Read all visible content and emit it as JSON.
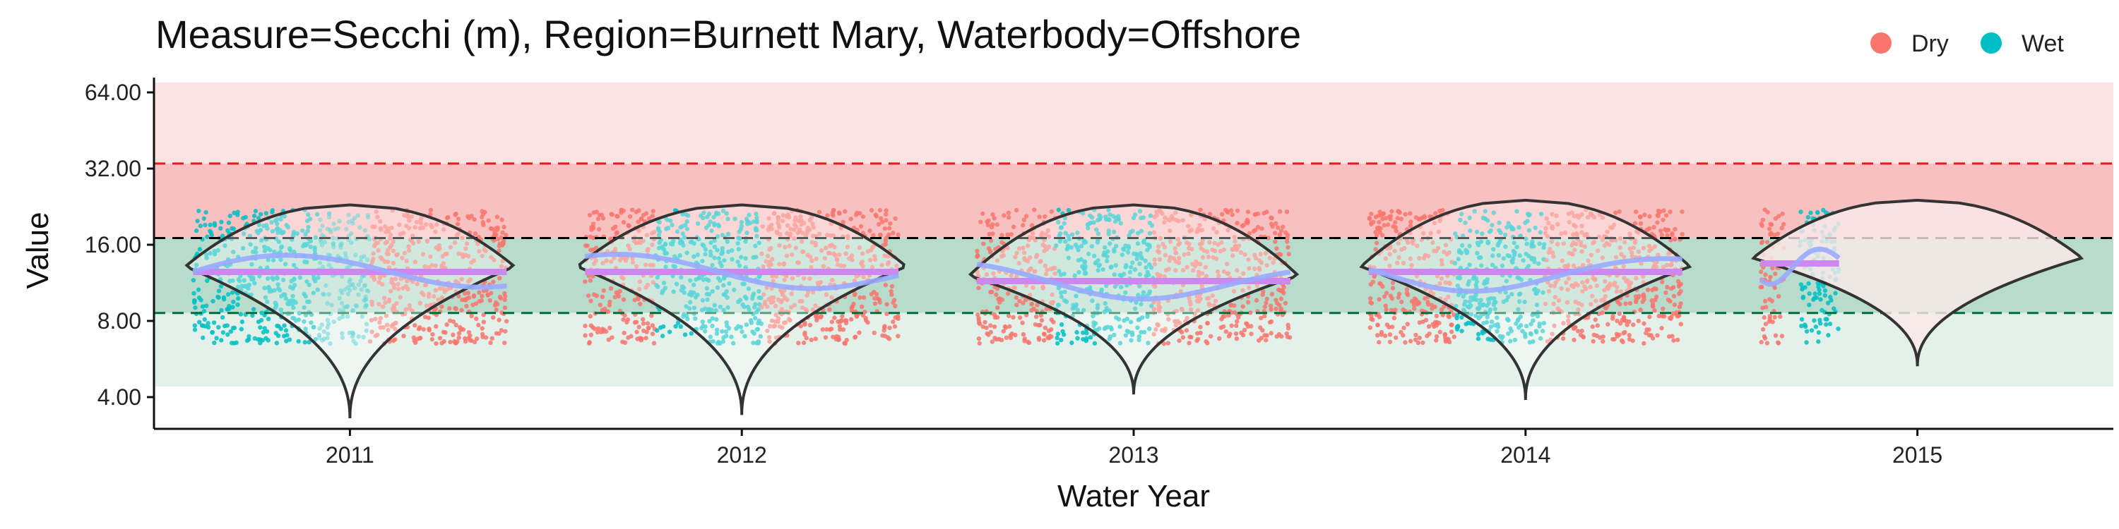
{
  "chart_data": {
    "type": "violin",
    "title": "Measure=Secchi (m), Region=Burnett Mary, Waterbody=Offshore",
    "xlabel": "Water Year",
    "ylabel": "Value",
    "y_scale": "log2",
    "ylim": [
      3.3,
      80
    ],
    "y_ticks": [
      4,
      8,
      16,
      32,
      64
    ],
    "y_tick_labels": [
      "4.00",
      "8.00",
      "16.00",
      "32.00",
      "64.00"
    ],
    "categories": [
      "2011",
      "2012",
      "2013",
      "2014",
      "2015"
    ],
    "legend": {
      "position": "top-right",
      "entries": [
        {
          "name": "Dry",
          "color": "#f8766d"
        },
        {
          "name": "Wet",
          "color": "#00bfc4"
        }
      ]
    },
    "reference_lines": [
      {
        "value": 33.5,
        "color": "#e41a1c",
        "style": "dashed"
      },
      {
        "value": 17.0,
        "color": "#000000",
        "style": "dashed"
      },
      {
        "value": 8.6,
        "color": "#006d3b",
        "style": "dashed"
      }
    ],
    "background_bands": [
      {
        "from": 33.5,
        "to": 70,
        "color": "#fbe3e3"
      },
      {
        "from": 17.0,
        "to": 33.5,
        "color": "#f8c1c1"
      },
      {
        "from": 8.6,
        "to": 17.0,
        "color": "#b7dccc"
      },
      {
        "from": 4.4,
        "to": 8.6,
        "color": "#e3f1ea"
      }
    ],
    "series": [
      {
        "name": "Dry",
        "color": "#f8766d"
      },
      {
        "name": "Wet",
        "color": "#00bfc4"
      }
    ],
    "groups": [
      {
        "year": "2011",
        "median": 12.5,
        "violin_min": 3.3,
        "violin_max": 23
      },
      {
        "year": "2012",
        "median": 12.5,
        "violin_min": 3.4,
        "violin_max": 23
      },
      {
        "year": "2013",
        "median": 11.5,
        "violin_min": 4.1,
        "violin_max": 23
      },
      {
        "year": "2014",
        "median": 12.5,
        "violin_min": 3.9,
        "violin_max": 24
      },
      {
        "year": "2015",
        "median": 13.5,
        "violin_min": 5.3,
        "violin_max": 24
      }
    ],
    "colors": {
      "median_line": "#cc88ee",
      "trend_line": "#99aaff",
      "violin_outline": "#333333"
    }
  }
}
